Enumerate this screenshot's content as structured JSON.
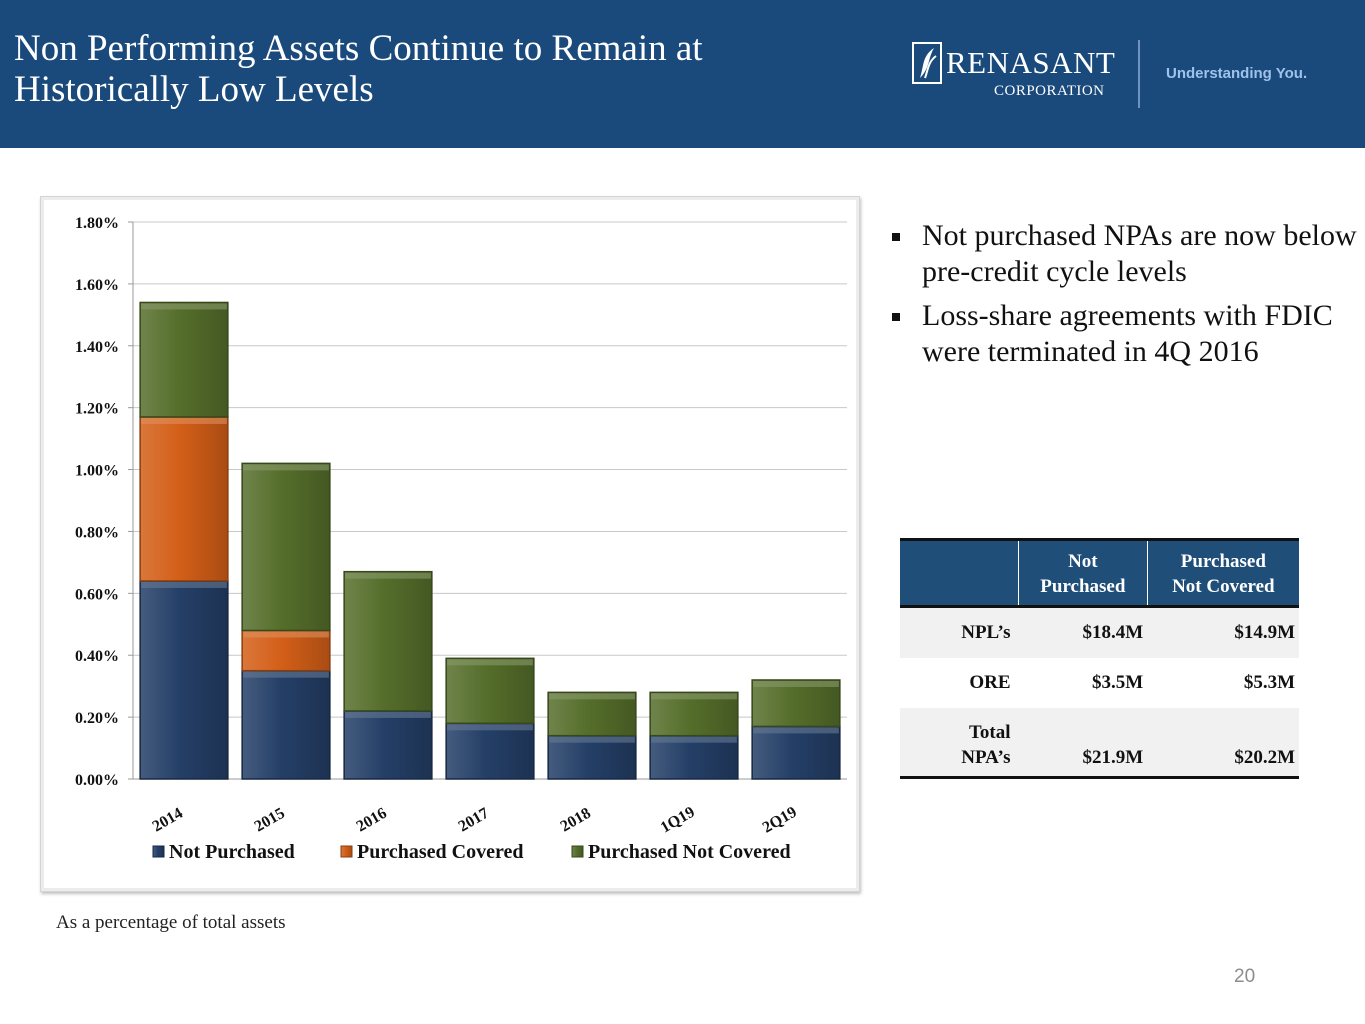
{
  "header": {
    "title_line1": "Non Performing Assets Continue to Remain at",
    "title_line2": "Historically Low Levels",
    "logo_name": "RENASANT",
    "logo_corp": "CORPORATION",
    "tagline": "Understanding You."
  },
  "colors": {
    "header_bg": "#1a4a7c",
    "not_purchased": "#243f67",
    "purchased_covered": "#d35f18",
    "purchased_not_covered": "#556e2b"
  },
  "chart_data": {
    "type": "bar",
    "stacked": true,
    "categories": [
      "2014",
      "2015",
      "2016",
      "2017",
      "2018",
      "1Q19",
      "2Q19"
    ],
    "series": [
      {
        "name": "Not Purchased",
        "color": "#243f67",
        "values": [
          0.64,
          0.35,
          0.22,
          0.18,
          0.14,
          0.14,
          0.17
        ]
      },
      {
        "name": "Purchased Covered",
        "color": "#d35f18",
        "values": [
          0.53,
          0.13,
          0.0,
          0.0,
          0.0,
          0.0,
          0.0
        ]
      },
      {
        "name": "Purchased Not Covered",
        "color": "#556e2b",
        "values": [
          0.37,
          0.54,
          0.45,
          0.21,
          0.14,
          0.14,
          0.15
        ]
      }
    ],
    "y_ticks": [
      "0.00%",
      "0.20%",
      "0.40%",
      "0.60%",
      "0.80%",
      "1.00%",
      "1.20%",
      "1.40%",
      "1.60%",
      "1.80%"
    ],
    "ylim": [
      0,
      1.8
    ],
    "title": "",
    "xlabel": "",
    "ylabel": "",
    "legend_position": "bottom",
    "grid": true
  },
  "bullets": [
    "Not purchased NPAs are now below pre-credit cycle levels",
    "Loss-share agreements with FDIC were terminated in 4Q 2016"
  ],
  "table": {
    "col1_line1": "Not",
    "col1_line2": "Purchased",
    "col2_line1": "Purchased",
    "col2_line2": "Not Covered",
    "rows": [
      {
        "label": "NPL’s",
        "not_purchased": "$18.4M",
        "purchased_not_covered": "$14.9M"
      },
      {
        "label": "ORE",
        "not_purchased": "$3.5M",
        "purchased_not_covered": "$5.3M"
      },
      {
        "label_line1": "Total",
        "label_line2": "NPA’s",
        "not_purchased": "$21.9M",
        "purchased_not_covered": "$20.2M"
      }
    ]
  },
  "footnote": "As a percentage of total assets",
  "page_number": "20"
}
